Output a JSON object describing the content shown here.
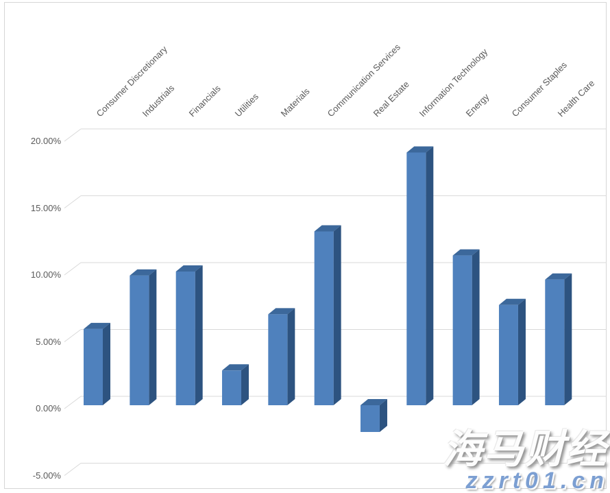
{
  "chart_data": {
    "type": "bar",
    "variant": "3d-column",
    "title": "",
    "xlabel": "",
    "ylabel": "",
    "categories": [
      "Consumer Discretionary",
      "Industrials",
      "Financials",
      "Utilities",
      "Materials",
      "Communication Services",
      "Real Estate",
      "Information Technology",
      "Energy",
      "Consumer Staples",
      "Health Care"
    ],
    "values": [
      5.7,
      9.7,
      10.0,
      2.6,
      6.8,
      13.0,
      -2.0,
      18.9,
      11.2,
      7.5,
      9.4
    ],
    "value_unit": "%",
    "ylim": [
      -5,
      20
    ],
    "ytick_step": 5,
    "yticks": [
      "20.00%",
      "15.00%",
      "10.00%",
      "5.00%",
      "0.00%",
      "-5.00%"
    ],
    "ytick_values": [
      20,
      15,
      10,
      5,
      0,
      -5
    ],
    "grid": true,
    "legend": false,
    "bar_colors": {
      "front": "#4F81BD",
      "side": "#2D5380",
      "top": "#3C689B"
    },
    "gridline_color": "#D9D9D9",
    "label_color": "#595959"
  },
  "watermark": {
    "brand": "海马财经",
    "site": "zzrt01.cn"
  }
}
